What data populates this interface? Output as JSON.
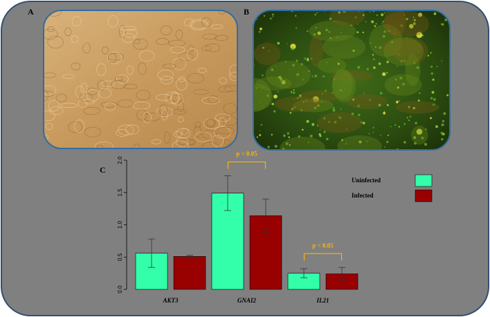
{
  "panel_labels": [
    "A",
    "B",
    "C"
  ],
  "chart_data": {
    "type": "bar",
    "categories": [
      "AKT3",
      "GNAI2",
      "IL21"
    ],
    "series": [
      {
        "name": "Uninfected",
        "color": "#33ffaa",
        "values": [
          0.56,
          1.49,
          0.25
        ],
        "errors": [
          0.22,
          0.27,
          0.07
        ]
      },
      {
        "name": "Infected",
        "color": "#990000",
        "values": [
          0.51,
          1.14,
          0.24
        ],
        "errors": [
          0.02,
          0.26,
          0.1
        ]
      }
    ],
    "ylim": [
      0,
      2
    ],
    "yticks": [
      {
        "value": 0,
        "label": "0.0"
      },
      0.5,
      {
        "value": 1,
        "label": "1.0"
      },
      1.5,
      {
        "value": 2,
        "label": "2.0"
      }
    ],
    "annotations": [
      {
        "text": "p < 0.05",
        "category": "GNAI2"
      },
      {
        "text": "p < 0.05",
        "category": "IL21"
      }
    ],
    "annotation_color": "#ffb400",
    "legend": "right"
  }
}
